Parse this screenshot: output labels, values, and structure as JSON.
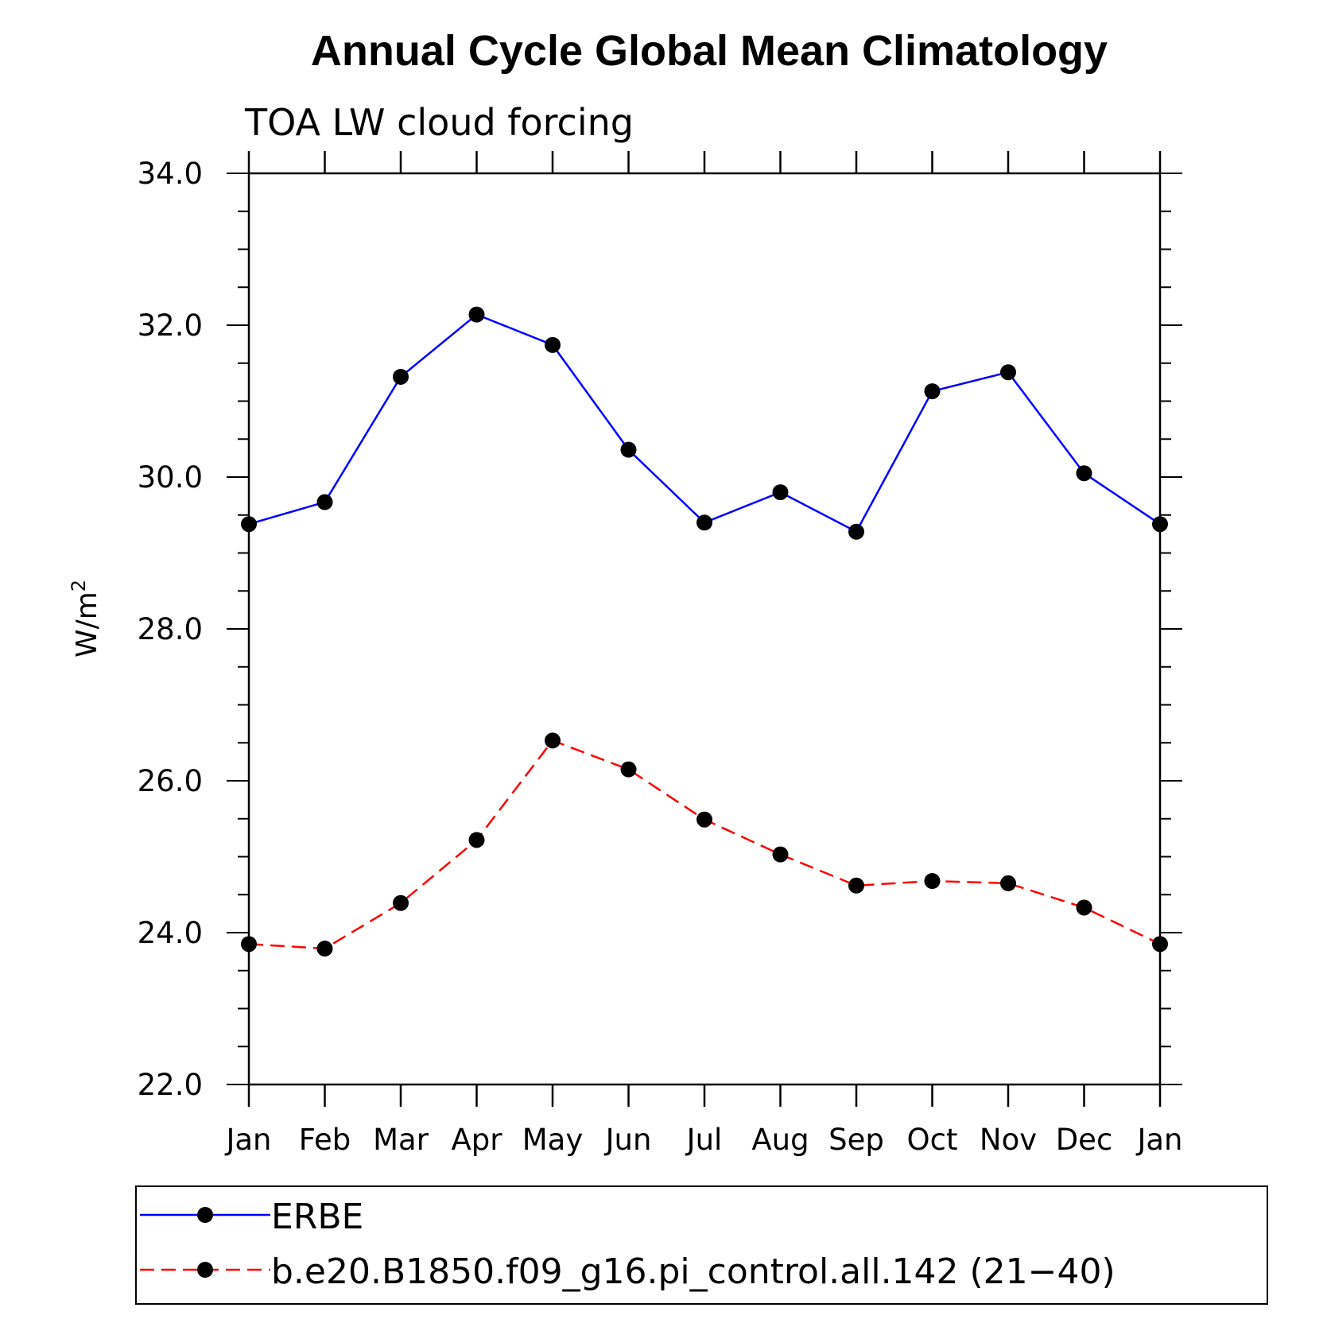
{
  "chart_data": {
    "type": "line",
    "title": "Annual Cycle Global Mean Climatology",
    "subtitle": "TOA LW cloud forcing",
    "ylabel": "W/m",
    "ylabel_sup": "2",
    "xlabel": "",
    "categories": [
      "Jan",
      "Feb",
      "Mar",
      "Apr",
      "May",
      "Jun",
      "Jul",
      "Aug",
      "Sep",
      "Oct",
      "Nov",
      "Dec",
      "Jan"
    ],
    "ylim": [
      22.0,
      34.0
    ],
    "yticks": [
      "22.0",
      "24.0",
      "26.0",
      "28.0",
      "30.0",
      "32.0",
      "34.0"
    ],
    "yticks_values": [
      22,
      24,
      26,
      28,
      30,
      32,
      34
    ],
    "grid": false,
    "legend_position": "bottom",
    "series": [
      {
        "name": "ERBE",
        "color": "#0000ff",
        "line_style": "solid",
        "marker": "circle",
        "values": [
          29.38,
          29.67,
          31.32,
          32.14,
          31.74,
          30.36,
          29.4,
          29.8,
          29.28,
          31.13,
          31.38,
          30.05,
          29.38
        ]
      },
      {
        "name": "b.e20.B1850.f09_g16.pi_control.all.142 (21−40)",
        "color": "#ff0000",
        "line_style": "dashed",
        "marker": "circle",
        "values": [
          23.85,
          23.79,
          24.39,
          25.22,
          26.53,
          26.15,
          25.49,
          25.03,
          24.62,
          24.68,
          24.65,
          24.33,
          23.85
        ]
      }
    ]
  }
}
